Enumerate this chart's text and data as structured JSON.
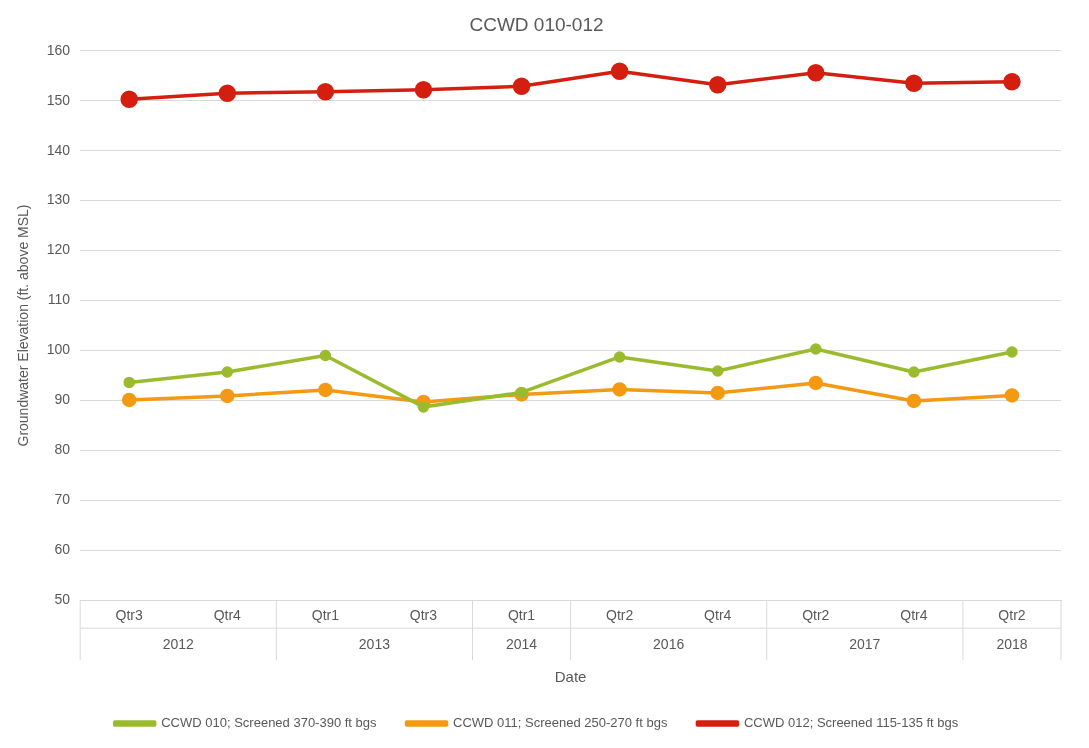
{
  "chart_data": {
    "type": "line",
    "title": "CCWD 010-012",
    "xlabel": "Date",
    "ylabel": "Groundwater Elevation (ft. above MSL)",
    "categories": [
      "Qtr3",
      "Qtr4",
      "Qtr1",
      "Qtr3",
      "Qtr1",
      "Qtr2",
      "Qtr4",
      "Qtr2",
      "Qtr4",
      "Qtr2"
    ],
    "annotations": [
      "2012",
      "2013",
      "2014",
      "2016",
      "2017",
      "2018"
    ],
    "series": [
      {
        "name": "CCWD 010; Screened 370-390 ft bgs",
        "color": "#9bbb2e",
        "values": [
          93.6,
          95.7,
          99.0,
          88.7,
          91.6,
          98.7,
          95.9,
          100.3,
          95.7,
          99.7
        ]
      },
      {
        "name": "CCWD 011; Screened 250-270 ft bgs",
        "color": "#f39a12",
        "values": [
          90.1,
          90.9,
          92.1,
          89.7,
          91.2,
          92.2,
          91.5,
          93.5,
          89.9,
          91.0
        ]
      },
      {
        "name": "CCWD 012; Screened 115-135 ft bgs",
        "color": "#d41f10",
        "values": [
          150.3,
          151.5,
          151.8,
          152.2,
          152.9,
          155.9,
          153.2,
          155.6,
          153.5,
          153.8
        ]
      }
    ],
    "ylim": [
      50,
      160
    ],
    "yticks": [
      50,
      60,
      70,
      80,
      90,
      100,
      110,
      120,
      130,
      140,
      150,
      160
    ],
    "grid": "y",
    "legend": "bottom",
    "marker": "circle",
    "line_style": "solid"
  }
}
